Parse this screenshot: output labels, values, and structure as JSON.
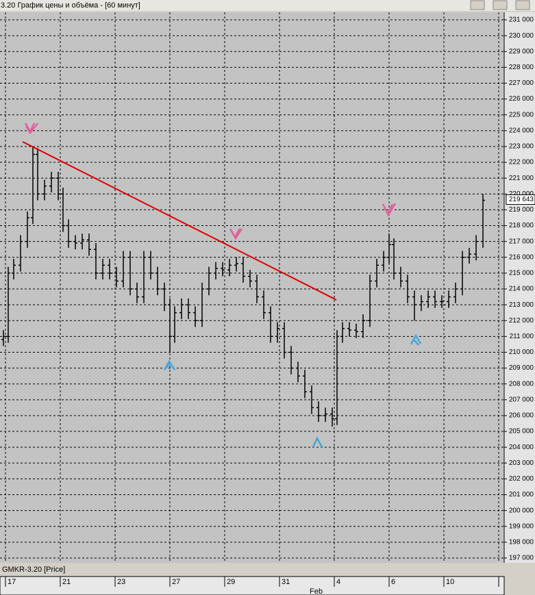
{
  "chart_data": {
    "type": "candlestick",
    "title": "3.20 График цены и объёма - [60 минут]",
    "instrument_label": "GMKR-3.20 [Price]",
    "month_label": "Feb",
    "color": "#000000",
    "grid": true,
    "xlim": [
      0,
      184
    ],
    "xticks": [
      {
        "value": 2,
        "label": "17"
      },
      {
        "value": 22,
        "label": "21"
      },
      {
        "value": 42,
        "label": "23"
      },
      {
        "value": 62,
        "label": "27"
      },
      {
        "value": 82,
        "label": "29"
      },
      {
        "value": 102,
        "label": "31"
      },
      {
        "value": 122,
        "label": "4"
      },
      {
        "value": 142,
        "label": "6"
      },
      {
        "value": 162,
        "label": "10"
      },
      {
        "value": 182,
        "label": null
      }
    ],
    "ylim": [
      196697,
      231476
    ],
    "yticks": [
      {
        "value": 197000,
        "label": "197 000"
      },
      {
        "value": 198000,
        "label": "198 000"
      },
      {
        "value": 199000,
        "label": "199 000"
      },
      {
        "value": 200000,
        "label": "200 000"
      },
      {
        "value": 201000,
        "label": "201 000"
      },
      {
        "value": 202000,
        "label": "202 000"
      },
      {
        "value": 203000,
        "label": "203 000"
      },
      {
        "value": 204000,
        "label": "204 000"
      },
      {
        "value": 205000,
        "label": "205 000"
      },
      {
        "value": 206000,
        "label": "206 000"
      },
      {
        "value": 207000,
        "label": "207 000"
      },
      {
        "value": 208000,
        "label": "208 000"
      },
      {
        "value": 209000,
        "label": "209 000"
      },
      {
        "value": 210000,
        "label": "210 000"
      },
      {
        "value": 211000,
        "label": "211 000"
      },
      {
        "value": 212000,
        "label": "212 000"
      },
      {
        "value": 213000,
        "label": "213 000"
      },
      {
        "value": 214000,
        "label": "214 000"
      },
      {
        "value": 215000,
        "label": "215 000"
      },
      {
        "value": 216000,
        "label": "216 000"
      },
      {
        "value": 217000,
        "label": "217 000"
      },
      {
        "value": 218000,
        "label": "218 000"
      },
      {
        "value": 219000,
        "label": "219 000"
      },
      {
        "value": 220000,
        "label": "220 000"
      },
      {
        "value": 221000,
        "label": "221 000"
      },
      {
        "value": 222000,
        "label": "222 000"
      },
      {
        "value": 223000,
        "label": "223 000"
      },
      {
        "value": 224000,
        "label": "224 000"
      },
      {
        "value": 225000,
        "label": "225 000"
      },
      {
        "value": 226000,
        "label": "226 000"
      },
      {
        "value": 227000,
        "label": "227 000"
      },
      {
        "value": 228000,
        "label": "228 000"
      },
      {
        "value": 229000,
        "label": "229 000"
      },
      {
        "value": 230000,
        "label": "230 000"
      },
      {
        "value": 231000,
        "label": "231 000"
      }
    ],
    "last_price": {
      "value": 219643,
      "label": "219 643"
    },
    "trendline": {
      "x": [
        8.25,
        122.75
      ],
      "y": [
        223300,
        213310
      ],
      "color": "#e00000"
    },
    "x": [
      1.25,
      3,
      5,
      7.5,
      10,
      12,
      13.75,
      16.25,
      18.75,
      21.25,
      23,
      25,
      27.5,
      30,
      32.5,
      35,
      37.5,
      40,
      42.5,
      45,
      47.5,
      50,
      52.5,
      55,
      57.5,
      60,
      62,
      63.75,
      66.25,
      68.75,
      71.25,
      73.75,
      76.25,
      78.75,
      81.25,
      83.75,
      86.25,
      88.75,
      91.25,
      93.75,
      96.25,
      98.75,
      101.25,
      103.75,
      106.25,
      108.75,
      111.25,
      113.75,
      116.25,
      118.75,
      121.25,
      123,
      125,
      127.5,
      130,
      132.5,
      135,
      137.5,
      140,
      142,
      143.75,
      146.25,
      148.75,
      151.25,
      153.75,
      156.25,
      158.75,
      161.25,
      163.75,
      166.25,
      168.75,
      171.25,
      173.75,
      176.25
    ],
    "open": [
      210800,
      211000,
      215000,
      215500,
      217000,
      218500,
      222500,
      220000,
      220500,
      221000,
      220000,
      218000,
      217000,
      216900,
      217100,
      216500,
      215000,
      215500,
      215000,
      214500,
      216000,
      214000,
      213500,
      216000,
      215000,
      214000,
      213000,
      211000,
      212500,
      213000,
      212500,
      212000,
      214000,
      215000,
      215300,
      215200,
      215500,
      215600,
      214800,
      214500,
      213500,
      212500,
      211000,
      211500,
      210000,
      209000,
      208500,
      207500,
      206500,
      206000,
      206100,
      205800,
      211000,
      211500,
      211400,
      211300,
      212000,
      214500,
      215500,
      216000,
      216800,
      215000,
      214500,
      213500,
      213000,
      213200,
      213500,
      213200,
      213200,
      213500,
      214000,
      216000,
      216200,
      217000
    ],
    "high": [
      211400,
      215400,
      215900,
      217400,
      218900,
      223000,
      222900,
      220900,
      221400,
      221400,
      220400,
      218400,
      217400,
      217500,
      217500,
      216900,
      215900,
      215900,
      215400,
      216400,
      216400,
      214400,
      216400,
      216400,
      215400,
      214400,
      213400,
      212900,
      213400,
      213400,
      212900,
      214400,
      215400,
      215700,
      215700,
      215900,
      216000,
      216000,
      215200,
      214900,
      213900,
      212900,
      211900,
      211900,
      210400,
      209400,
      208900,
      207900,
      206900,
      206500,
      206500,
      211400,
      211900,
      211900,
      211800,
      212400,
      214900,
      215900,
      216400,
      217500,
      217200,
      215400,
      214900,
      213900,
      213600,
      213900,
      213900,
      213600,
      213900,
      214400,
      216400,
      216600,
      217400,
      220000
    ],
    "low": [
      210400,
      210600,
      214600,
      215100,
      216600,
      218100,
      219600,
      219600,
      220100,
      219600,
      217600,
      216600,
      216500,
      216500,
      216100,
      214600,
      214600,
      214600,
      214100,
      214100,
      213600,
      213100,
      213100,
      214600,
      213600,
      212600,
      210000,
      210600,
      212100,
      212100,
      211600,
      211600,
      213600,
      214600,
      214800,
      214800,
      215100,
      214400,
      214100,
      213100,
      212100,
      210600,
      210600,
      209600,
      208600,
      208100,
      207100,
      206100,
      205600,
      205600,
      205300,
      205400,
      210600,
      211000,
      210900,
      210900,
      211600,
      214100,
      215100,
      215600,
      214600,
      214100,
      213100,
      212000,
      212600,
      212800,
      212800,
      212800,
      212800,
      213100,
      213600,
      215600,
      215800,
      216600
    ],
    "close": [
      211000,
      215000,
      215500,
      217000,
      218500,
      222500,
      220000,
      220500,
      221000,
      220000,
      218000,
      217000,
      216900,
      217100,
      216500,
      215000,
      215500,
      215000,
      214500,
      216000,
      214000,
      213500,
      216000,
      215000,
      214000,
      213000,
      211000,
      212500,
      213000,
      212500,
      212000,
      214000,
      215000,
      215300,
      215200,
      215500,
      215600,
      214800,
      214500,
      213500,
      212500,
      211000,
      211500,
      210000,
      209000,
      208500,
      207500,
      206500,
      206000,
      206100,
      205800,
      211000,
      211500,
      211400,
      211300,
      212000,
      214500,
      215500,
      216000,
      216800,
      215000,
      214500,
      213500,
      213000,
      213200,
      213500,
      213200,
      213200,
      213500,
      214000,
      216000,
      216200,
      217000,
      219600
    ]
  }
}
